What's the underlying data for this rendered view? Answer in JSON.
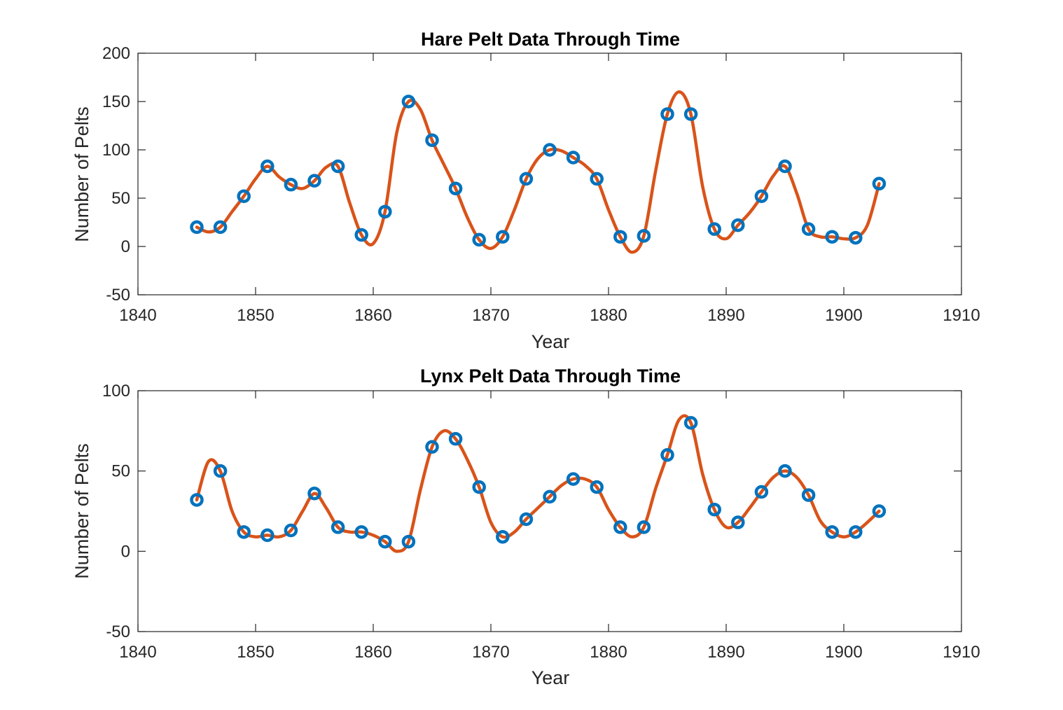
{
  "chart_data": [
    {
      "type": "line",
      "title": "Hare Pelt Data Through Time",
      "xlabel": "Year",
      "ylabel": "Number of Pelts",
      "xlim": [
        1840,
        1910
      ],
      "ylim": [
        -50,
        200
      ],
      "xticks": [
        "1840",
        "1850",
        "1860",
        "1870",
        "1880",
        "1890",
        "1900",
        "1910"
      ],
      "yticks": [
        "-50",
        "0",
        "50",
        "100",
        "150",
        "200"
      ],
      "grid": false,
      "colors": {
        "markers": "#0072BD",
        "fit": "#D95319"
      },
      "series": [
        {
          "style": "markers",
          "x": [
            1845,
            1847,
            1849,
            1851,
            1853,
            1855,
            1857,
            1859,
            1861,
            1863,
            1865,
            1867,
            1869,
            1871,
            1873,
            1875,
            1877,
            1879,
            1881,
            1883,
            1885,
            1887,
            1889,
            1891,
            1893,
            1895,
            1897,
            1899,
            1901,
            1903
          ],
          "y": [
            20,
            20,
            52,
            83,
            64,
            68,
            83,
            12,
            36,
            150,
            110,
            60,
            7,
            10,
            70,
            100,
            92,
            70,
            10,
            11,
            137,
            137,
            18,
            22,
            52,
            83,
            18,
            10,
            9,
            65
          ]
        },
        {
          "style": "line",
          "x": [
            1845,
            1846,
            1847,
            1848,
            1849,
            1850,
            1851,
            1852,
            1853,
            1854,
            1855,
            1856,
            1857,
            1858,
            1859,
            1860,
            1861,
            1862,
            1863,
            1864,
            1865,
            1866,
            1867,
            1868,
            1869,
            1870,
            1871,
            1872,
            1873,
            1874,
            1875,
            1876,
            1877,
            1878,
            1879,
            1880,
            1881,
            1882,
            1883,
            1884,
            1885,
            1886,
            1887,
            1888,
            1889,
            1890,
            1891,
            1892,
            1893,
            1894,
            1895,
            1896,
            1897,
            1898,
            1899,
            1900,
            1901,
            1902,
            1903
          ],
          "y": [
            20,
            15,
            20,
            36,
            52,
            70,
            83,
            72,
            64,
            60,
            68,
            82,
            83,
            45,
            12,
            3,
            36,
            118,
            150,
            142,
            110,
            85,
            60,
            30,
            7,
            -2,
            10,
            38,
            70,
            91,
            100,
            99,
            92,
            84,
            70,
            38,
            10,
            -6,
            11,
            78,
            137,
            160,
            137,
            62,
            18,
            8,
            22,
            35,
            52,
            73,
            83,
            55,
            18,
            10,
            10,
            8,
            9,
            22,
            65
          ]
        }
      ]
    },
    {
      "type": "line",
      "title": "Lynx Pelt Data Through Time",
      "xlabel": "Year",
      "ylabel": "Number of Pelts",
      "xlim": [
        1840,
        1910
      ],
      "ylim": [
        -50,
        100
      ],
      "xticks": [
        "1840",
        "1850",
        "1860",
        "1870",
        "1880",
        "1890",
        "1900",
        "1910"
      ],
      "yticks": [
        "-50",
        "0",
        "50",
        "100"
      ],
      "grid": false,
      "colors": {
        "markers": "#0072BD",
        "fit": "#D95319"
      },
      "series": [
        {
          "style": "markers",
          "x": [
            1845,
            1847,
            1849,
            1851,
            1853,
            1855,
            1857,
            1859,
            1861,
            1863,
            1865,
            1867,
            1869,
            1871,
            1873,
            1875,
            1877,
            1879,
            1881,
            1883,
            1885,
            1887,
            1889,
            1891,
            1893,
            1895,
            1897,
            1899,
            1901,
            1903
          ],
          "y": [
            32,
            50,
            12,
            10,
            13,
            36,
            15,
            12,
            6,
            6,
            65,
            70,
            40,
            9,
            20,
            34,
            45,
            40,
            15,
            15,
            60,
            80,
            26,
            18,
            37,
            50,
            35,
            12,
            12,
            25
          ]
        },
        {
          "style": "line",
          "x": [
            1845,
            1846,
            1847,
            1848,
            1849,
            1850,
            1851,
            1852,
            1853,
            1854,
            1855,
            1856,
            1857,
            1858,
            1859,
            1860,
            1861,
            1862,
            1863,
            1864,
            1865,
            1866,
            1867,
            1868,
            1869,
            1870,
            1871,
            1872,
            1873,
            1874,
            1875,
            1876,
            1877,
            1878,
            1879,
            1880,
            1881,
            1882,
            1883,
            1884,
            1885,
            1886,
            1887,
            1888,
            1889,
            1890,
            1891,
            1892,
            1893,
            1894,
            1895,
            1896,
            1897,
            1898,
            1899,
            1900,
            1901,
            1902,
            1903
          ],
          "y": [
            32,
            56,
            50,
            25,
            12,
            9,
            10,
            9,
            13,
            25,
            36,
            27,
            15,
            12,
            12,
            10,
            6,
            0,
            6,
            38,
            65,
            75,
            70,
            57,
            40,
            18,
            9,
            12,
            20,
            27,
            34,
            41,
            45,
            45,
            40,
            26,
            15,
            9,
            15,
            39,
            60,
            82,
            80,
            48,
            26,
            15,
            18,
            27,
            37,
            46,
            50,
            46,
            35,
            19,
            12,
            9,
            12,
            18,
            25
          ]
        }
      ]
    }
  ]
}
